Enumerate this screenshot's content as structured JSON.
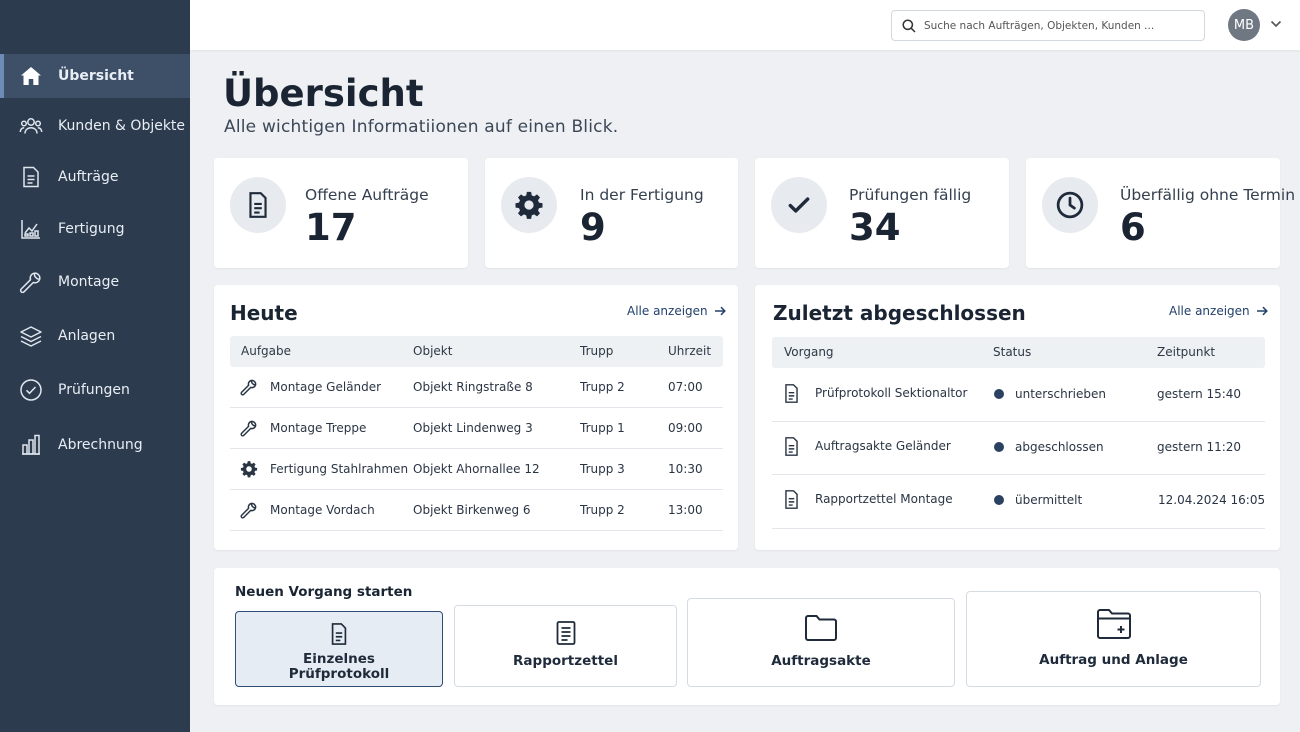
{
  "sidebar": {
    "items": [
      {
        "label": "Übersicht",
        "icon": "home-icon",
        "active": true
      },
      {
        "label": "Kunden & Objekte",
        "icon": "users-icon"
      },
      {
        "label": "Aufträge",
        "icon": "document-icon"
      },
      {
        "label": "Fertigung",
        "icon": "chart-icon"
      },
      {
        "label": "Montage",
        "icon": "wrench-icon"
      },
      {
        "label": "Anlagen",
        "icon": "layers-icon"
      },
      {
        "label": "Prüfungen",
        "icon": "check-circle-icon"
      },
      {
        "label": "Abrechnung",
        "icon": "bar-chart-icon"
      }
    ]
  },
  "topbar": {
    "search_placeholder": "Suche nach Aufträgen, Objekten, Kunden ...",
    "avatar_initials": "MB"
  },
  "page": {
    "title": "Übersicht",
    "subtitle": "Alle wichtigen Informatiionen auf einen Blick."
  },
  "stats": [
    {
      "label": "Offene Aufträge",
      "value": "17",
      "icon": "document-icon"
    },
    {
      "label": "In der Fertigung",
      "value": "9",
      "icon": "gear-icon"
    },
    {
      "label": "Prüfungen fällig",
      "value": "34",
      "icon": "check-icon"
    },
    {
      "label": "Überfällig ohne Termin",
      "value": "6",
      "icon": "clock-icon"
    }
  ],
  "today": {
    "title": "Heute",
    "link": "Alle anzeigen",
    "headers": {
      "task": "Aufgabe",
      "object": "Objekt",
      "team": "Trupp",
      "time": "Uhrzeit"
    },
    "rows": [
      {
        "task": "Montage Geländer",
        "object": "Objekt Ringstraße 8",
        "team": "Trupp 2",
        "time": "07:00",
        "icon": "wrench-icon"
      },
      {
        "task": "Montage Treppe",
        "object": "Objekt Lindenweg 3",
        "team": "Trupp 1",
        "time": "09:00",
        "icon": "wrench-icon"
      },
      {
        "task": "Fertigung Stahlrahmen",
        "object": "Objekt Ahornallee 12",
        "team": "Trupp 3",
        "time": "10:30",
        "icon": "gear-icon"
      },
      {
        "task": "Montage Vordach",
        "object": "Objekt Birkenweg 6",
        "team": "Trupp 2",
        "time": "13:00",
        "icon": "wrench-icon"
      }
    ]
  },
  "recent": {
    "title": "Zuletzt abgeschlossen",
    "link": "Alle anzeigen",
    "headers": {
      "process": "Vorgang",
      "status": "Status",
      "time": "Zeitpunkt"
    },
    "rows": [
      {
        "process": "Prüfprotokoll Sektionaltor",
        "status": "unterschrieben",
        "time": "gestern 15:40"
      },
      {
        "process": "Auftragsakte Geländer",
        "status": "abgeschlossen",
        "time": "gestern 11:20"
      },
      {
        "process": "Rapportzettel Montage",
        "status": "übermittelt",
        "time": "12.04.2024 16:05"
      }
    ]
  },
  "new_process": {
    "title": "Neuen Vorgang starten",
    "actions": [
      {
        "label_line1": "Einzelnes",
        "label_line2": "Prüfprotokoll",
        "icon": "document-icon",
        "active": true
      },
      {
        "label": "Rapportzettel",
        "icon": "notepad-icon"
      },
      {
        "label": "Auftragsakte",
        "icon": "folder-icon"
      },
      {
        "label": "Auftrag und Anlage",
        "icon": "folder-plus-icon"
      }
    ]
  },
  "colors": {
    "sidebar_bg": "#2c3b4e",
    "sidebar_active": "#3d5068",
    "accent": "#2f4d75",
    "status_dot": "#2b4161",
    "page_bg": "#eef0f3"
  }
}
